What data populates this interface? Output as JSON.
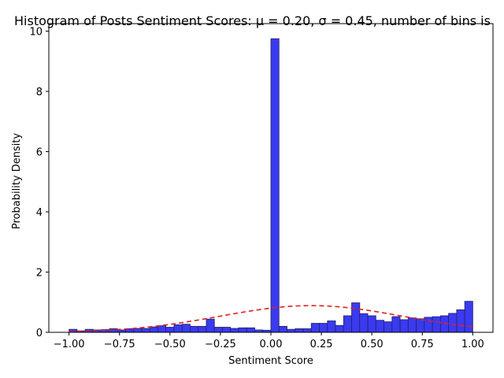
{
  "chart_data": {
    "type": "bar",
    "title": "Histogram of Posts Sentiment Scores: μ = 0.20,  σ = 0.45, number of bins is",
    "xlabel": "Sentiment Score",
    "ylabel": "Probability Density",
    "xlim": [
      -1.1,
      1.1
    ],
    "ylim": [
      0,
      10.25
    ],
    "x_ticks": [
      -1.0,
      -0.75,
      -0.5,
      -0.25,
      0.0,
      0.25,
      0.5,
      0.75,
      1.0
    ],
    "x_tick_labels": [
      "−1.00",
      "−0.75",
      "−0.50",
      "−0.25",
      "0.00",
      "0.25",
      "0.50",
      "0.75",
      "1.00"
    ],
    "y_ticks": [
      0,
      2,
      4,
      6,
      8,
      10
    ],
    "y_tick_labels": [
      "0",
      "2",
      "4",
      "6",
      "8",
      "10"
    ],
    "grid": false,
    "legend": "none",
    "bin_start": -1.0,
    "bin_width": 0.04,
    "values": [
      0.1,
      0.05,
      0.1,
      0.08,
      0.09,
      0.12,
      0.08,
      0.12,
      0.13,
      0.13,
      0.18,
      0.22,
      0.17,
      0.25,
      0.27,
      0.2,
      0.2,
      0.44,
      0.17,
      0.17,
      0.13,
      0.15,
      0.15,
      0.08,
      0.07,
      9.75,
      0.2,
      0.1,
      0.12,
      0.12,
      0.3,
      0.3,
      0.38,
      0.23,
      0.55,
      0.98,
      0.62,
      0.55,
      0.4,
      0.35,
      0.52,
      0.42,
      0.48,
      0.45,
      0.5,
      0.52,
      0.55,
      0.63,
      0.75,
      1.03
    ],
    "bar_fill": "#3a3af0",
    "bar_edge": "#222266",
    "fit_line": {
      "style": "dashed",
      "color": "#e02020",
      "mu": 0.2,
      "sigma": 0.45,
      "x_range": [
        -1.0,
        1.0
      ]
    }
  }
}
